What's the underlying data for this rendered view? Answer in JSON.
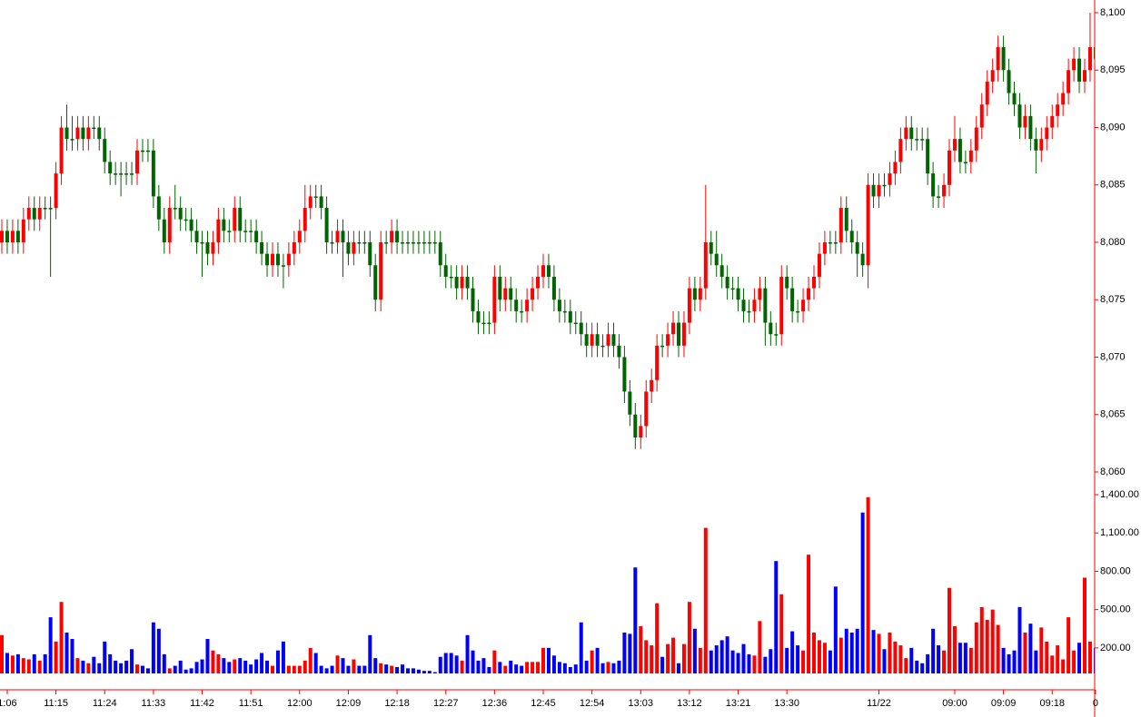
{
  "chart_data": {
    "type": "candlestick",
    "up_color": "#ff0000",
    "down_color": "#006400",
    "volume_up_color": "#ff0000",
    "volume_down_color": "#0000ff",
    "axis_color": "#ff0000",
    "categories": [
      null,
      "1:06",
      null,
      null,
      null,
      null,
      null,
      null,
      null,
      null,
      "11:15",
      null,
      null,
      null,
      null,
      null,
      null,
      null,
      null,
      "11:24",
      null,
      null,
      null,
      null,
      null,
      null,
      null,
      null,
      "11:33",
      null,
      null,
      null,
      null,
      null,
      null,
      null,
      null,
      "11:42",
      null,
      null,
      null,
      null,
      null,
      null,
      null,
      null,
      "11:51",
      null,
      null,
      null,
      null,
      null,
      null,
      null,
      null,
      "12:00",
      null,
      null,
      null,
      null,
      null,
      null,
      null,
      null,
      "12:09",
      null,
      null,
      null,
      null,
      null,
      null,
      null,
      null,
      "12:18",
      null,
      null,
      null,
      null,
      null,
      null,
      null,
      null,
      "12:27",
      null,
      null,
      null,
      null,
      null,
      null,
      null,
      null,
      "12:36",
      null,
      null,
      null,
      null,
      null,
      null,
      null,
      null,
      "12:45",
      null,
      null,
      null,
      null,
      null,
      null,
      null,
      null,
      "12:54",
      null,
      null,
      null,
      null,
      null,
      null,
      null,
      null,
      "13:03",
      null,
      null,
      null,
      null,
      null,
      null,
      null,
      null,
      "13:12",
      null,
      null,
      null,
      null,
      null,
      null,
      null,
      null,
      "13:21",
      null,
      null,
      null,
      null,
      null,
      null,
      null,
      null,
      "13:30",
      null,
      null,
      null,
      null,
      null,
      null,
      null,
      null,
      null,
      null,
      null,
      null,
      null,
      null,
      null,
      null,
      "11/22",
      null,
      null,
      null,
      null,
      null,
      null,
      null,
      null,
      null,
      null,
      null,
      null,
      null,
      "09:00",
      null,
      null,
      null,
      null,
      null,
      null,
      null,
      null,
      "09:09",
      null,
      null,
      null,
      null,
      null,
      null,
      null,
      null,
      "09:18",
      null,
      null,
      null,
      null,
      null,
      null,
      null,
      "0"
    ],
    "open": [
      8080,
      8081,
      8080,
      8081,
      8080,
      8082,
      8083,
      8082,
      8083,
      8083,
      8083,
      8086,
      8090,
      8089,
      8089,
      8090,
      8089,
      8090,
      8090,
      8089,
      8087,
      8086,
      8086,
      8086,
      8086,
      8086,
      8088,
      8088,
      8088,
      8084,
      8082,
      8080,
      8083,
      8083,
      8082,
      8082,
      8081,
      8080,
      8080,
      8079,
      8080,
      8082,
      8081,
      8081,
      8083,
      8081,
      8081,
      8081,
      8080,
      8079,
      8078,
      8079,
      8078,
      8078,
      8079,
      8080,
      8081,
      8083,
      8084,
      8084,
      8083,
      8080,
      8080,
      8081,
      8080,
      8079,
      8080,
      8080,
      8080,
      8078,
      8075,
      8080,
      8080,
      8081,
      8080,
      8080,
      8080,
      8080,
      8080,
      8080,
      8080,
      8080,
      8078,
      8077,
      8077,
      8076,
      8077,
      8076,
      8074,
      8073,
      8073,
      8073,
      8077,
      8075,
      8076,
      8075,
      8074,
      8074,
      8075,
      8076,
      8077,
      8078,
      8077,
      8075,
      8074,
      8074,
      8073,
      8073,
      8072,
      8071,
      8072,
      8071,
      8071,
      8072,
      8071,
      8070,
      8067,
      8065,
      8063,
      8064,
      8067,
      8068,
      8071,
      8071,
      8072,
      8073,
      8071,
      8073,
      8076,
      8075,
      8076,
      8080,
      8079,
      8078,
      8077,
      8076,
      8076,
      8075,
      8074,
      8074,
      8075,
      8076,
      8073,
      8072,
      8072,
      8077,
      8076,
      8074,
      8074,
      8075,
      8076,
      8077,
      8079,
      8080,
      8080,
      8080,
      8083,
      8081,
      8080,
      8079,
      8078,
      8085,
      8084,
      8085,
      8085,
      8086,
      8087,
      8089,
      8090,
      8089,
      8089,
      8089,
      8086,
      8084,
      8084,
      8085,
      8088,
      8089,
      8087,
      8087,
      8088,
      8090,
      8092,
      8094,
      8095,
      8097,
      8095,
      8093,
      8092,
      8090,
      8091,
      8089,
      8088,
      8089,
      8090,
      8091,
      8092,
      8093,
      8095,
      8096,
      8094,
      8095,
      8097
    ],
    "high": [
      8082,
      8082,
      8082,
      8082,
      8083,
      8084,
      8084,
      8084,
      8084,
      8084,
      8087,
      8091,
      8092,
      8091,
      8091,
      8091,
      8091,
      8091,
      8091,
      8090,
      8088,
      8087,
      8087,
      8087,
      8087,
      8089,
      8089,
      8089,
      8089,
      8085,
      8083,
      8084,
      8085,
      8084,
      8083,
      8083,
      8082,
      8081,
      8081,
      8081,
      8083,
      8083,
      8082,
      8084,
      8084,
      8082,
      8082,
      8082,
      8081,
      8080,
      8080,
      8080,
      8079,
      8080,
      8081,
      8082,
      8085,
      8085,
      8085,
      8085,
      8084,
      8081,
      8082,
      8082,
      8081,
      8081,
      8081,
      8081,
      8081,
      8079,
      8081,
      8081,
      8082,
      8082,
      8081,
      8081,
      8081,
      8081,
      8081,
      8081,
      8081,
      8081,
      8079,
      8078,
      8078,
      8078,
      8078,
      8077,
      8075,
      8074,
      8074,
      8078,
      8078,
      8077,
      8077,
      8076,
      8075,
      8076,
      8077,
      8078,
      8079,
      8079,
      8078,
      8076,
      8075,
      8075,
      8074,
      8074,
      8073,
      8073,
      8073,
      8072,
      8073,
      8073,
      8072,
      8071,
      8068,
      8066,
      8065,
      8068,
      8069,
      8072,
      8072,
      8073,
      8074,
      8074,
      8074,
      8077,
      8077,
      8077,
      8085,
      8081,
      8081,
      8079,
      8078,
      8077,
      8077,
      8076,
      8075,
      8076,
      8077,
      8077,
      8074,
      8073,
      8078,
      8078,
      8077,
      8075,
      8076,
      8077,
      8078,
      8080,
      8081,
      8081,
      8081,
      8084,
      8084,
      8082,
      8081,
      8080,
      8086,
      8086,
      8086,
      8086,
      8087,
      8088,
      8090,
      8091,
      8091,
      8090,
      8090,
      8090,
      8087,
      8085,
      8086,
      8089,
      8091,
      8090,
      8088,
      8089,
      8091,
      8093,
      8095,
      8096,
      8098,
      8098,
      8096,
      8094,
      8093,
      8092,
      8092,
      8090,
      8090,
      8091,
      8092,
      8093,
      8094,
      8096,
      8097,
      8097,
      8096,
      8100,
      8098
    ],
    "low": [
      8079,
      8079,
      8079,
      8079,
      8079,
      8081,
      8081,
      8081,
      8082,
      8077,
      8082,
      8085,
      8088,
      8088,
      8088,
      8088,
      8088,
      8089,
      8088,
      8086,
      8085,
      8085,
      8084,
      8085,
      8085,
      8085,
      8087,
      8087,
      8083,
      8081,
      8079,
      8079,
      8082,
      8081,
      8081,
      8080,
      8079,
      8077,
      8078,
      8078,
      8079,
      8080,
      8080,
      8080,
      8080,
      8080,
      8080,
      8079,
      8078,
      8077,
      8077,
      8077,
      8076,
      8077,
      8078,
      8079,
      8080,
      8082,
      8083,
      8082,
      8079,
      8079,
      8079,
      8077,
      8078,
      8078,
      8079,
      8079,
      8077,
      8074,
      8074,
      8079,
      8079,
      8079,
      8079,
      8079,
      8079,
      8079,
      8079,
      8079,
      8079,
      8077,
      8076,
      8076,
      8075,
      8075,
      8075,
      8073,
      8072,
      8072,
      8072,
      8072,
      8074,
      8074,
      8074,
      8073,
      8073,
      8073,
      8074,
      8075,
      8076,
      8076,
      8074,
      8073,
      8073,
      8072,
      8072,
      8071,
      8070,
      8070,
      8070,
      8070,
      8070,
      8070,
      8069,
      8066,
      8064,
      8062,
      8062,
      8063,
      8066,
      8067,
      8070,
      8070,
      8071,
      8070,
      8070,
      8072,
      8074,
      8074,
      8075,
      8078,
      8077,
      8076,
      8075,
      8075,
      8074,
      8073,
      8073,
      8073,
      8074,
      8071,
      8071,
      8071,
      8071,
      8075,
      8073,
      8073,
      8073,
      8074,
      8075,
      8076,
      8078,
      8079,
      8079,
      8079,
      8080,
      8079,
      8077,
      8077,
      8076,
      8083,
      8083,
      8084,
      8084,
      8085,
      8086,
      8088,
      8088,
      8088,
      8088,
      8085,
      8083,
      8083,
      8083,
      8084,
      8087,
      8086,
      8086,
      8086,
      8087,
      8089,
      8091,
      8093,
      8094,
      8094,
      8092,
      8091,
      8089,
      8089,
      8088,
      8086,
      8087,
      8088,
      8089,
      8090,
      8091,
      8092,
      8094,
      8093,
      8093,
      8094,
      8095
    ],
    "close": [
      8081,
      8080,
      8081,
      8080,
      8082,
      8083,
      8082,
      8083,
      8083,
      8083,
      8086,
      8090,
      8089,
      8089,
      8090,
      8089,
      8090,
      8090,
      8089,
      8087,
      8086,
      8086,
      8086,
      8086,
      8086,
      8088,
      8088,
      8088,
      8084,
      8082,
      8080,
      8083,
      8083,
      8082,
      8082,
      8081,
      8080,
      8080,
      8079,
      8080,
      8082,
      8081,
      8081,
      8083,
      8081,
      8081,
      8081,
      8080,
      8079,
      8078,
      8079,
      8078,
      8078,
      8079,
      8080,
      8081,
      8083,
      8084,
      8084,
      8083,
      8080,
      8080,
      8081,
      8080,
      8079,
      8080,
      8080,
      8080,
      8078,
      8075,
      8080,
      8080,
      8081,
      8080,
      8080,
      8080,
      8080,
      8080,
      8080,
      8080,
      8080,
      8078,
      8077,
      8077,
      8076,
      8077,
      8076,
      8074,
      8073,
      8073,
      8073,
      8077,
      8075,
      8076,
      8075,
      8074,
      8074,
      8075,
      8076,
      8077,
      8078,
      8077,
      8075,
      8074,
      8074,
      8073,
      8073,
      8072,
      8071,
      8072,
      8071,
      8071,
      8072,
      8071,
      8070,
      8067,
      8065,
      8063,
      8064,
      8067,
      8068,
      8071,
      8071,
      8072,
      8073,
      8071,
      8073,
      8076,
      8075,
      8076,
      8080,
      8079,
      8078,
      8077,
      8076,
      8076,
      8075,
      8074,
      8074,
      8075,
      8076,
      8073,
      8072,
      8072,
      8077,
      8076,
      8074,
      8074,
      8075,
      8076,
      8077,
      8079,
      8080,
      8080,
      8080,
      8083,
      8081,
      8080,
      8079,
      8078,
      8085,
      8084,
      8085,
      8085,
      8086,
      8087,
      8089,
      8090,
      8089,
      8089,
      8089,
      8086,
      8084,
      8084,
      8085,
      8088,
      8089,
      8087,
      8087,
      8088,
      8090,
      8092,
      8094,
      8095,
      8097,
      8095,
      8093,
      8092,
      8090,
      8091,
      8089,
      8088,
      8089,
      8090,
      8091,
      8092,
      8093,
      8095,
      8096,
      8094,
      8095,
      8097,
      8096
    ],
    "volume": [
      300,
      160,
      140,
      150,
      120,
      110,
      150,
      100,
      150,
      440,
      250,
      560,
      320,
      270,
      120,
      100,
      80,
      130,
      80,
      250,
      150,
      100,
      80,
      100,
      190,
      70,
      60,
      40,
      400,
      350,
      150,
      40,
      60,
      100,
      30,
      40,
      90,
      110,
      270,
      180,
      150,
      120,
      90,
      110,
      120,
      100,
      70,
      110,
      160,
      100,
      60,
      180,
      250,
      60,
      60,
      60,
      100,
      200,
      160,
      60,
      40,
      60,
      140,
      120,
      60,
      110,
      60,
      60,
      300,
      120,
      80,
      70,
      60,
      50,
      70,
      40,
      40,
      30,
      20,
      20,
      10,
      130,
      160,
      160,
      140,
      100,
      300,
      180,
      100,
      120,
      50,
      180,
      90,
      60,
      100,
      70,
      60,
      90,
      90,
      90,
      200,
      200,
      140,
      90,
      80,
      50,
      70,
      400,
      100,
      180,
      200,
      80,
      90,
      80,
      100,
      320,
      310,
      830,
      370,
      260,
      220,
      550,
      130,
      230,
      280,
      80,
      230,
      560,
      350,
      200,
      1140,
      180,
      220,
      260,
      290,
      180,
      160,
      230,
      150,
      140,
      410,
      130,
      190,
      880,
      620,
      200,
      330,
      220,
      180,
      930,
      320,
      260,
      240,
      180,
      680,
      280,
      350,
      320,
      350,
      1260,
      1380,
      340,
      310,
      190,
      320,
      250,
      220,
      120,
      200,
      100,
      80,
      150,
      350,
      220,
      180,
      670,
      370,
      240,
      240,
      200,
      400,
      520,
      420,
      500,
      380,
      200,
      150,
      180,
      520,
      320,
      390,
      180,
      360,
      250,
      140,
      220,
      110,
      440,
      180,
      240,
      750,
      250,
      200
    ],
    "ylim": [
      8059,
      8101
    ],
    "yticks": [
      {
        "value": 8060,
        "label": "8,060"
      },
      {
        "value": 8065,
        "label": "8,065"
      },
      {
        "value": 8070,
        "label": "8,070"
      },
      {
        "value": 8075,
        "label": "8,075"
      },
      {
        "value": 8080,
        "label": "8,080"
      },
      {
        "value": 8085,
        "label": "8,085"
      },
      {
        "value": 8090,
        "label": "8,090"
      },
      {
        "value": 8095,
        "label": "8,095"
      },
      {
        "value": 8100,
        "label": "8,100"
      }
    ],
    "y2lim": [
      0,
      1450
    ],
    "y2ticks": [
      {
        "value": 200,
        "label": "200.00"
      },
      {
        "value": 500,
        "label": "500.00"
      },
      {
        "value": 800,
        "label": "800.00"
      },
      {
        "value": 1100,
        "label": "1,100.00"
      },
      {
        "value": 1400,
        "label": "1,400.00"
      }
    ]
  }
}
